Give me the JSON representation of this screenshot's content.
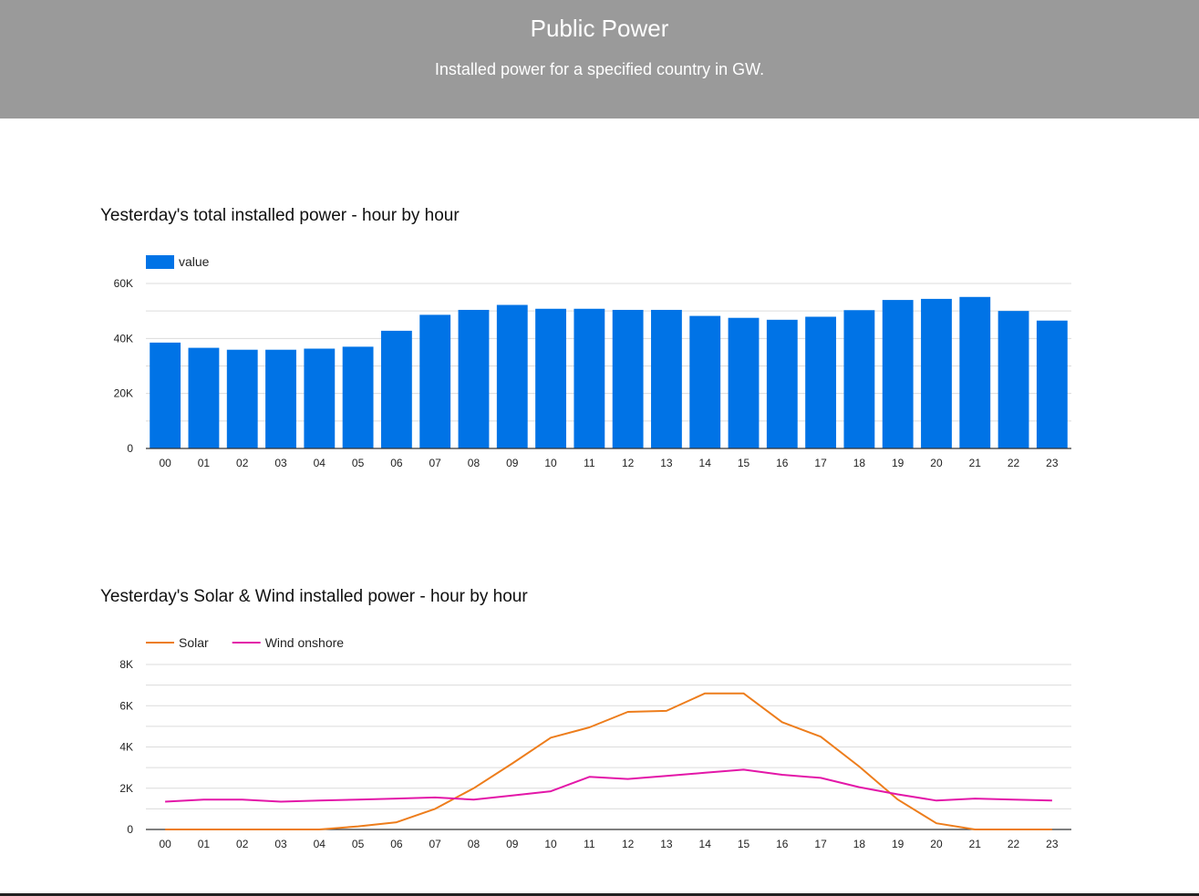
{
  "header": {
    "title": "Public Power",
    "subtitle": "Installed power for a specified country in GW."
  },
  "colors": {
    "header_bg": "#9a9a9a",
    "bar": "#0073e6",
    "solar": "#ed7d1c",
    "wind": "#e317a8",
    "grid": "#dcdcdc",
    "axis": "#333333"
  },
  "chart_data": [
    {
      "type": "bar",
      "title": "Yesterday's total installed power - hour by hour",
      "categories": [
        "00",
        "01",
        "02",
        "03",
        "04",
        "05",
        "06",
        "07",
        "08",
        "09",
        "10",
        "11",
        "12",
        "13",
        "14",
        "15",
        "16",
        "17",
        "18",
        "19",
        "20",
        "21",
        "22",
        "23"
      ],
      "series": [
        {
          "name": "value",
          "values": [
            38500,
            36600,
            35900,
            35900,
            36300,
            37000,
            42800,
            48600,
            50400,
            52200,
            50800,
            50800,
            50400,
            50400,
            48200,
            47500,
            46800,
            47900,
            50300,
            54000,
            54400,
            55100,
            50000,
            46500
          ]
        }
      ],
      "ylim": [
        0,
        60000
      ],
      "yticks": [
        0,
        20000,
        40000,
        60000
      ],
      "ytick_labels": [
        "0",
        "20K",
        "40K",
        "60K"
      ],
      "grid": true,
      "legend": "top-left"
    },
    {
      "type": "line",
      "title": "Yesterday's Solar & Wind installed power - hour by hour",
      "categories": [
        "00",
        "01",
        "02",
        "03",
        "04",
        "05",
        "06",
        "07",
        "08",
        "09",
        "10",
        "11",
        "12",
        "13",
        "14",
        "15",
        "16",
        "17",
        "18",
        "19",
        "20",
        "21",
        "22",
        "23"
      ],
      "series": [
        {
          "name": "Solar",
          "values": [
            0,
            0,
            0,
            0,
            0,
            150,
            350,
            1000,
            2000,
            3200,
            4450,
            4950,
            5700,
            5750,
            6600,
            6600,
            5200,
            4500,
            3050,
            1450,
            300,
            0,
            0,
            0
          ]
        },
        {
          "name": "Wind onshore",
          "values": [
            1350,
            1450,
            1450,
            1350,
            1400,
            1450,
            1500,
            1550,
            1450,
            1650,
            1850,
            2550,
            2450,
            2600,
            2750,
            2900,
            2650,
            2500,
            2050,
            1700,
            1400,
            1500,
            1450,
            1400
          ]
        }
      ],
      "ylim": [
        0,
        8000
      ],
      "yticks": [
        0,
        2000,
        4000,
        6000,
        8000
      ],
      "ytick_labels": [
        "0",
        "2K",
        "4K",
        "6K",
        "8K"
      ],
      "grid": true,
      "legend": "top-left"
    }
  ]
}
